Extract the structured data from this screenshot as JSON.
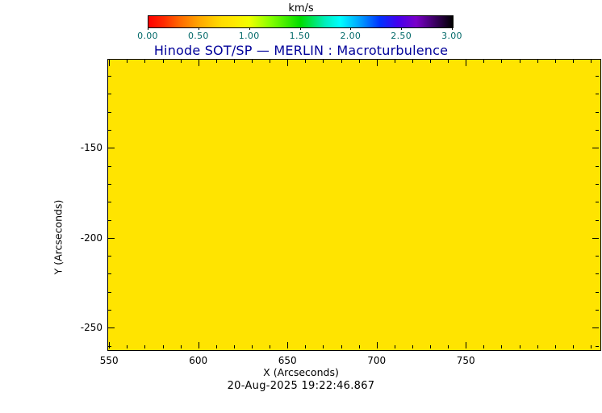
{
  "chart_data": {
    "type": "heatmap",
    "title": "Hinode SOT/SP — MERLIN : Macroturbulence",
    "xlabel": "X (Arcseconds)",
    "ylabel": "Y (Arcseconds)",
    "xlim": [
      549,
      825
    ],
    "ylim": [
      -262,
      -100.5
    ],
    "x_ticks": [
      {
        "value": 550,
        "label": "550"
      },
      {
        "value": 600,
        "label": "600"
      },
      {
        "value": 650,
        "label": "650"
      },
      {
        "value": 700,
        "label": "700"
      },
      {
        "value": 750,
        "label": "750"
      }
    ],
    "y_ticks": [
      {
        "value": -150,
        "label": "-150"
      },
      {
        "value": -200,
        "label": "-200"
      },
      {
        "value": -250,
        "label": "-250"
      }
    ],
    "x_minor_step": 10,
    "y_minor_step": 10,
    "grid": false,
    "map_fill_color": "#ffe400",
    "map_uniform_value_estimate_km_s": 0.85,
    "colorbar": {
      "unit": "km/s",
      "range": [
        0,
        3
      ],
      "ticks": [
        {
          "value": 0.0,
          "label": "0.00"
        },
        {
          "value": 0.5,
          "label": "0.50"
        },
        {
          "value": 1.0,
          "label": "1.00"
        },
        {
          "value": 1.5,
          "label": "1.50"
        },
        {
          "value": 2.0,
          "label": "2.00"
        },
        {
          "value": 2.5,
          "label": "2.50"
        },
        {
          "value": 3.0,
          "label": "3.00"
        }
      ],
      "gradient": [
        {
          "pos": 0,
          "color": "#ff0000"
        },
        {
          "pos": 5,
          "color": "#ff2a00"
        },
        {
          "pos": 10,
          "color": "#ff6600"
        },
        {
          "pos": 17,
          "color": "#ffaa00"
        },
        {
          "pos": 24,
          "color": "#ffdd00"
        },
        {
          "pos": 28,
          "color": "#ffe800"
        },
        {
          "pos": 33,
          "color": "#f2ff00"
        },
        {
          "pos": 40,
          "color": "#88ff00"
        },
        {
          "pos": 50,
          "color": "#00dd00"
        },
        {
          "pos": 58,
          "color": "#00eebb"
        },
        {
          "pos": 63,
          "color": "#00ffff"
        },
        {
          "pos": 70,
          "color": "#0099ff"
        },
        {
          "pos": 76,
          "color": "#0033ff"
        },
        {
          "pos": 82,
          "color": "#4400ee"
        },
        {
          "pos": 88,
          "color": "#7a00c8"
        },
        {
          "pos": 94,
          "color": "#3c0064"
        },
        {
          "pos": 100,
          "color": "#000000"
        }
      ]
    }
  },
  "footer": {
    "timestamp": "20-Aug-2025 19:22:46.867"
  }
}
